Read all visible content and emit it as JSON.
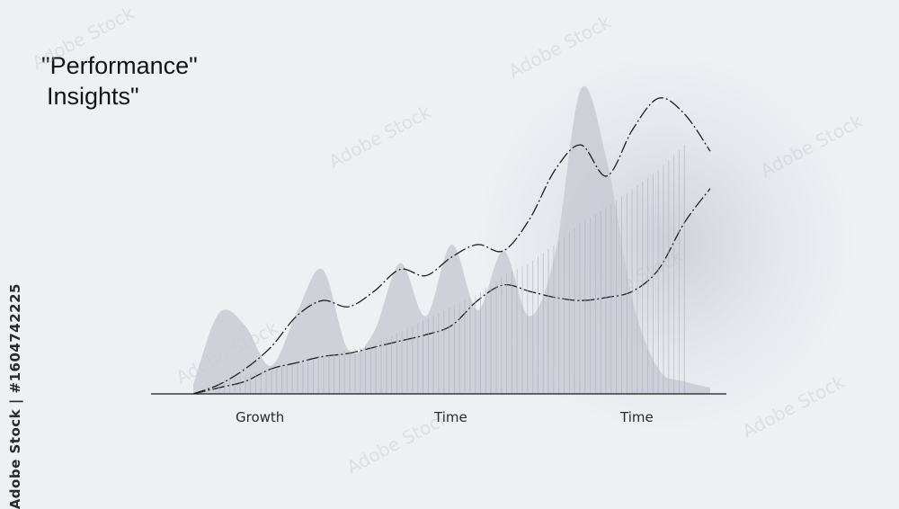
{
  "title_line1": "\"Performance\"",
  "title_line2": "Insights\"",
  "side_watermark": "Adobe Stock | #1604742225",
  "watermark_text": "Adobe Stock",
  "colors": {
    "background": "#eef0f4",
    "area_fill": "#c9cbd4",
    "bars": "#aeb1bd",
    "line": "#1e1e1e",
    "baseline": "#1a1a1a"
  },
  "chart_data": {
    "type": "area",
    "title": "",
    "xlabel": "",
    "ylabel": "",
    "x_tick_labels": [
      "Growth",
      "Time",
      "Time"
    ],
    "x": [
      0,
      5,
      10,
      15,
      20,
      25,
      30,
      35,
      40,
      45,
      50,
      55,
      60,
      65,
      70,
      75,
      80,
      85,
      90,
      95,
      100
    ],
    "xlim": [
      -8,
      100
    ],
    "ylim": [
      0,
      100
    ],
    "grid": false,
    "legend": "none",
    "series": [
      {
        "kind": "area",
        "values": [
          3,
          26,
          22,
          9,
          26,
          40,
          14,
          20,
          42,
          25,
          48,
          27,
          46,
          25,
          45,
          98,
          75,
          30,
          8,
          4,
          2
        ]
      },
      {
        "kind": "line-dash-dot",
        "values": [
          0,
          3,
          8,
          15,
          25,
          30,
          28,
          33,
          40,
          38,
          44,
          48,
          46,
          56,
          72,
          80,
          70,
          85,
          95,
          90,
          78
        ]
      },
      {
        "kind": "line-dash-dot",
        "values": [
          0,
          2,
          4,
          8,
          10,
          12,
          13,
          15,
          17,
          19,
          22,
          30,
          35,
          33,
          31,
          30,
          31,
          33,
          40,
          55,
          66
        ]
      },
      {
        "kind": "bars",
        "values": [
          3,
          4,
          6,
          8,
          10,
          12,
          14,
          16,
          20,
          24,
          28,
          32,
          38,
          42,
          48,
          55,
          60,
          66,
          72,
          80,
          86
        ]
      }
    ]
  }
}
